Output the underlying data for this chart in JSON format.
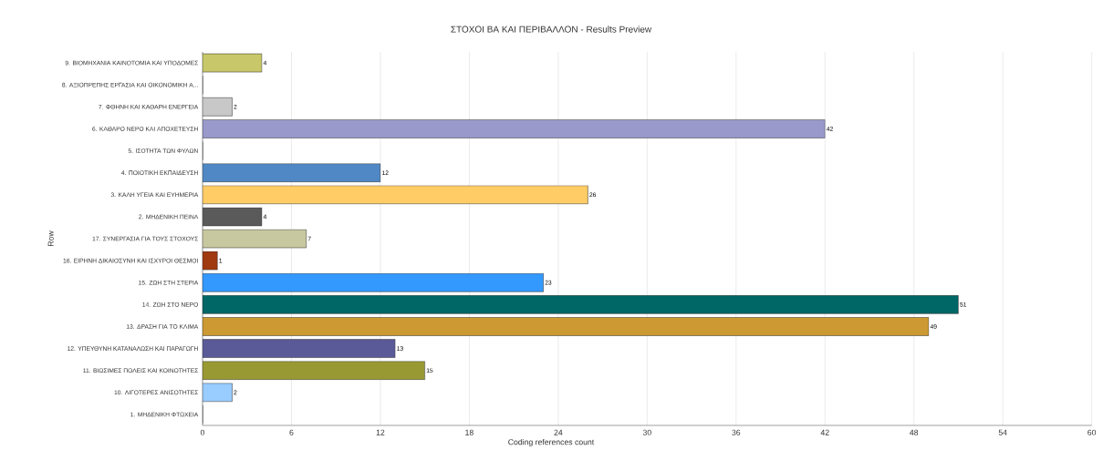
{
  "chart_data": {
    "type": "bar",
    "orientation": "horizontal",
    "title": "ΣΤΟΧΟΙ ΒΑ ΚΑΙ ΠΕΡΙΒΑΛΛΟΝ - Results Preview",
    "xlabel": "Coding references count",
    "ylabel": "Row",
    "categories": [
      "9. ΒΙΟΜΗΧΑΝΙΑ ΚΑΙΝΟΤΟΜΙΑ ΚΑΙ ΥΠΟΔΟΜΕΣ",
      "8. ΑΞΙΟΠΡΕΠΗΣ ΕΡΓΑΣΙΑ ΚΑΙ ΟΙΚΟΝΟΜΙΚΗ Α...",
      "7. ΦΘΗΝΗ ΚΑΙ ΚΑΘΑΡΗ ΕΝΕΡΓΕΙΑ",
      "6. ΚΑΘΑΡΟ ΝΕΡΟ ΚΑΙ ΑΠΟΧΕΤΕΥΣΗ",
      "5. ΙΣΟΤΗΤΑ ΤΩΝ ΦΥΛΩΝ",
      "4. ΠΟΙΟΤΙΚΗ ΕΚΠΑΙΔΕΥΣΗ",
      "3. ΚΑΛΗ ΥΓΕΙΑ ΚΑΙ ΕΥΗΜΕΡΙΑ",
      "2. ΜΗΔΕΝΙΚΗ ΠΕΙΝΑ",
      "17. ΣΥΝΕΡΓΑΣΙΑ ΓΙΑ ΤΟΥΣ ΣΤΟΧΟΥΣ",
      "16. ΕΙΡΗΝΗ ΔΙΚΑΙΟΣΥΝΗ ΚΑΙ ΙΣΧΥΡΟΙ ΘΕΣΜΟΙ",
      "15. ΖΩΗ ΣΤΗ ΣΤΕΡΙΑ",
      "14. ΖΩΗ ΣΤΟ ΝΕΡΟ",
      "13. ΔΡΑΣΗ ΓΙΑ ΤΟ ΚΛΙΜΑ",
      "12. ΥΠΕΥΘΥΝΗ ΚΑΤΑΝΑΛΩΣΗ ΚΑΙ ΠΑΡΑΓΩΓΗ",
      "11. ΒΙΩΣΙΜΕΣ ΠΟΛΕΙΣ ΚΑΙ ΚΟΙΝΟΤΗΤΕΣ",
      "10. ΛΙΓΟΤΕΡΕΣ ΑΝΙΣΟΤΗΤΕΣ",
      "1. ΜΗΔΕΝΙΚΗ ΦΤΩΧΕΙΑ"
    ],
    "values": [
      4,
      0,
      2,
      42,
      0,
      12,
      26,
      4,
      7,
      1,
      23,
      51,
      49,
      13,
      15,
      2,
      0
    ],
    "value_labels": [
      "4",
      null,
      "2",
      "42",
      null,
      "12",
      "26",
      "4",
      "7",
      "1",
      "23",
      "51",
      "49",
      "13",
      "15",
      "2",
      null
    ],
    "colors": [
      "#c8c86a",
      "#ffffff",
      "#c8c8c8",
      "#9999cc",
      "#ffffff",
      "#4f88c4",
      "#ffcc66",
      "#5a5a5a",
      "#c8c8a0",
      "#a03a10",
      "#3399ff",
      "#006666",
      "#cc9933",
      "#5a5a99",
      "#999933",
      "#99ccff",
      "#ffffff"
    ],
    "xlim": [
      0,
      60
    ],
    "xticks": [
      0,
      6,
      12,
      18,
      24,
      30,
      36,
      42,
      48,
      54,
      60
    ],
    "grid": "x"
  }
}
